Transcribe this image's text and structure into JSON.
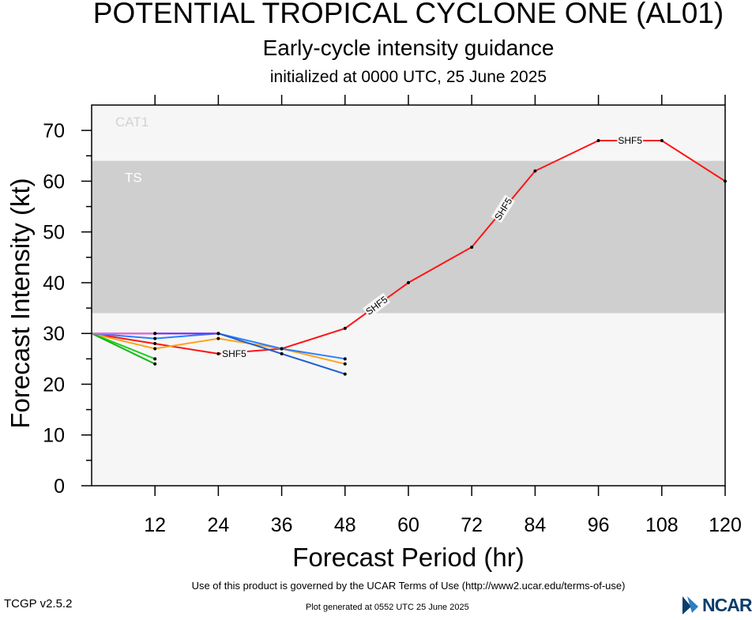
{
  "header": {
    "title": "POTENTIAL TROPICAL CYCLONE ONE (AL01)",
    "subtitle": "Early-cycle intensity guidance",
    "initialized": "initialized at 0000 UTC, 25 June 2025"
  },
  "footer": {
    "terms": "Use of this product is governed by the UCAR Terms of Use (http://www2.ucar.edu/terms-of-use)",
    "version": "TCGP v2.5.2",
    "generated": "Plot generated at 0552 UTC   25 June 2025",
    "logo_text": "NCAR"
  },
  "chart_data": {
    "type": "line",
    "xlabel": "Forecast Period (hr)",
    "ylabel": "Forecast Intensity (kt)",
    "xlim": [
      0,
      120
    ],
    "ylim": [
      0,
      75
    ],
    "xticks": [
      12,
      24,
      36,
      48,
      60,
      72,
      84,
      96,
      108,
      120
    ],
    "yticks": [
      0,
      10,
      20,
      30,
      40,
      50,
      60,
      70
    ],
    "grid": false,
    "bands": [
      {
        "label": "CAT1",
        "from": 64,
        "to": 75,
        "color": "#f6f6f6"
      },
      {
        "label": "TS",
        "from": 34,
        "to": 64,
        "color": "#cfcfcf"
      },
      {
        "label": "",
        "from": 0,
        "to": 34,
        "color": "#f6f6f6"
      }
    ],
    "series": [
      {
        "name": "SHF5",
        "color": "#ff1414",
        "x": [
          0,
          12,
          24,
          36,
          48,
          60,
          72,
          84,
          96,
          108,
          120
        ],
        "values": [
          30,
          28,
          26,
          27,
          31,
          40,
          47,
          62,
          68,
          68,
          60
        ],
        "labels": [
          {
            "text": "SHF5",
            "x": 27,
            "y": 26,
            "angle": 0
          },
          {
            "text": "SHF5",
            "x": 54,
            "y": 35.5,
            "angle": -37
          },
          {
            "text": "SHF5",
            "x": 78,
            "y": 54.5,
            "angle": -58
          },
          {
            "text": "SHF5",
            "x": 102,
            "y": 68,
            "angle": 0
          }
        ]
      },
      {
        "color": "#ffa21c",
        "x": [
          0,
          12,
          24,
          36,
          48
        ],
        "values": [
          30,
          27,
          29,
          27,
          24
        ]
      },
      {
        "color": "#2a80ff",
        "x": [
          0,
          12,
          24,
          36,
          48
        ],
        "values": [
          30,
          29,
          30,
          27,
          25
        ]
      },
      {
        "color": "#1c5fd1",
        "x": [
          0,
          24,
          36,
          48
        ],
        "values": [
          30,
          30,
          26,
          22
        ]
      },
      {
        "color": "#22cc22",
        "x": [
          0,
          12
        ],
        "values": [
          30,
          25
        ]
      },
      {
        "color": "#18b818",
        "x": [
          0,
          12
        ],
        "values": [
          30,
          24
        ]
      },
      {
        "color": "#a020f0",
        "x": [
          0,
          12,
          24
        ],
        "values": [
          30,
          30,
          30
        ]
      },
      {
        "color": "#ff66cc",
        "x": [
          0,
          12
        ],
        "values": [
          30,
          30
        ]
      }
    ]
  }
}
